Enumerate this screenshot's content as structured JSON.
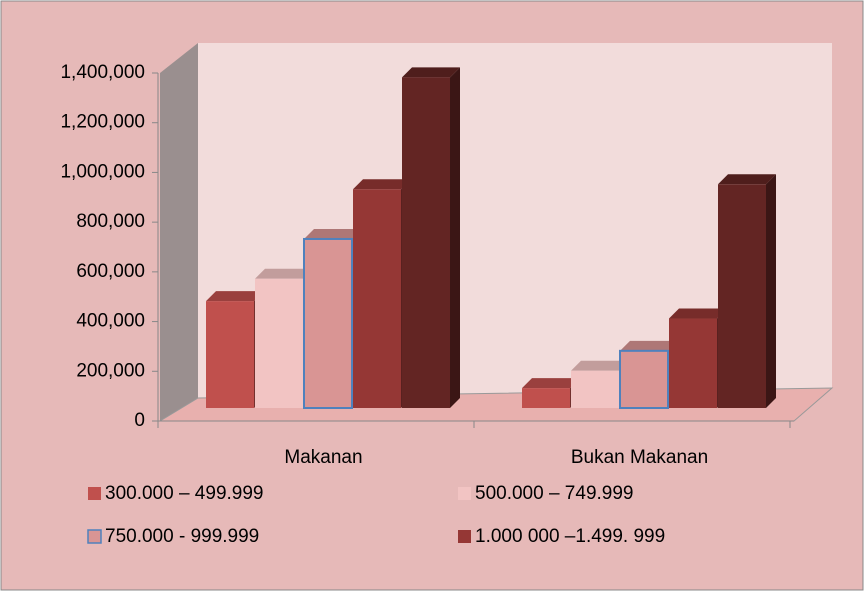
{
  "chart_data": {
    "type": "bar3d",
    "categories": [
      "Makanan",
      "Bukan Makanan"
    ],
    "series": [
      {
        "name": "300.000 – 499.999",
        "color": "#c0504d",
        "values": [
          430000,
          80000
        ]
      },
      {
        "name": "500.000 – 749.999",
        "color": "#f2c4c3",
        "values": [
          520000,
          150000
        ]
      },
      {
        "name": "750.000 - 999.999",
        "color": "#d99594",
        "values": [
          680000,
          230000
        ]
      },
      {
        "name": "1.000 000 –1.499. 999",
        "color": "#953735",
        "values": [
          880000,
          360000
        ]
      },
      {
        "color": "#632523",
        "values": [
          1330000,
          900000
        ]
      }
    ],
    "ylim": [
      0,
      1400000
    ],
    "yticks": [
      0,
      {
        "value": 200000,
        "label": "200,000"
      },
      {
        "value": 400000,
        "label": "400,000"
      },
      {
        "value": 600000,
        "label": "600,000"
      },
      {
        "value": 800000,
        "label": "800,000"
      },
      {
        "value": 1000000,
        "label": "1,000,000"
      },
      {
        "value": 1200000,
        "label": "1,200,000"
      },
      {
        "value": 1400000,
        "label": "1,400,000"
      }
    ]
  }
}
